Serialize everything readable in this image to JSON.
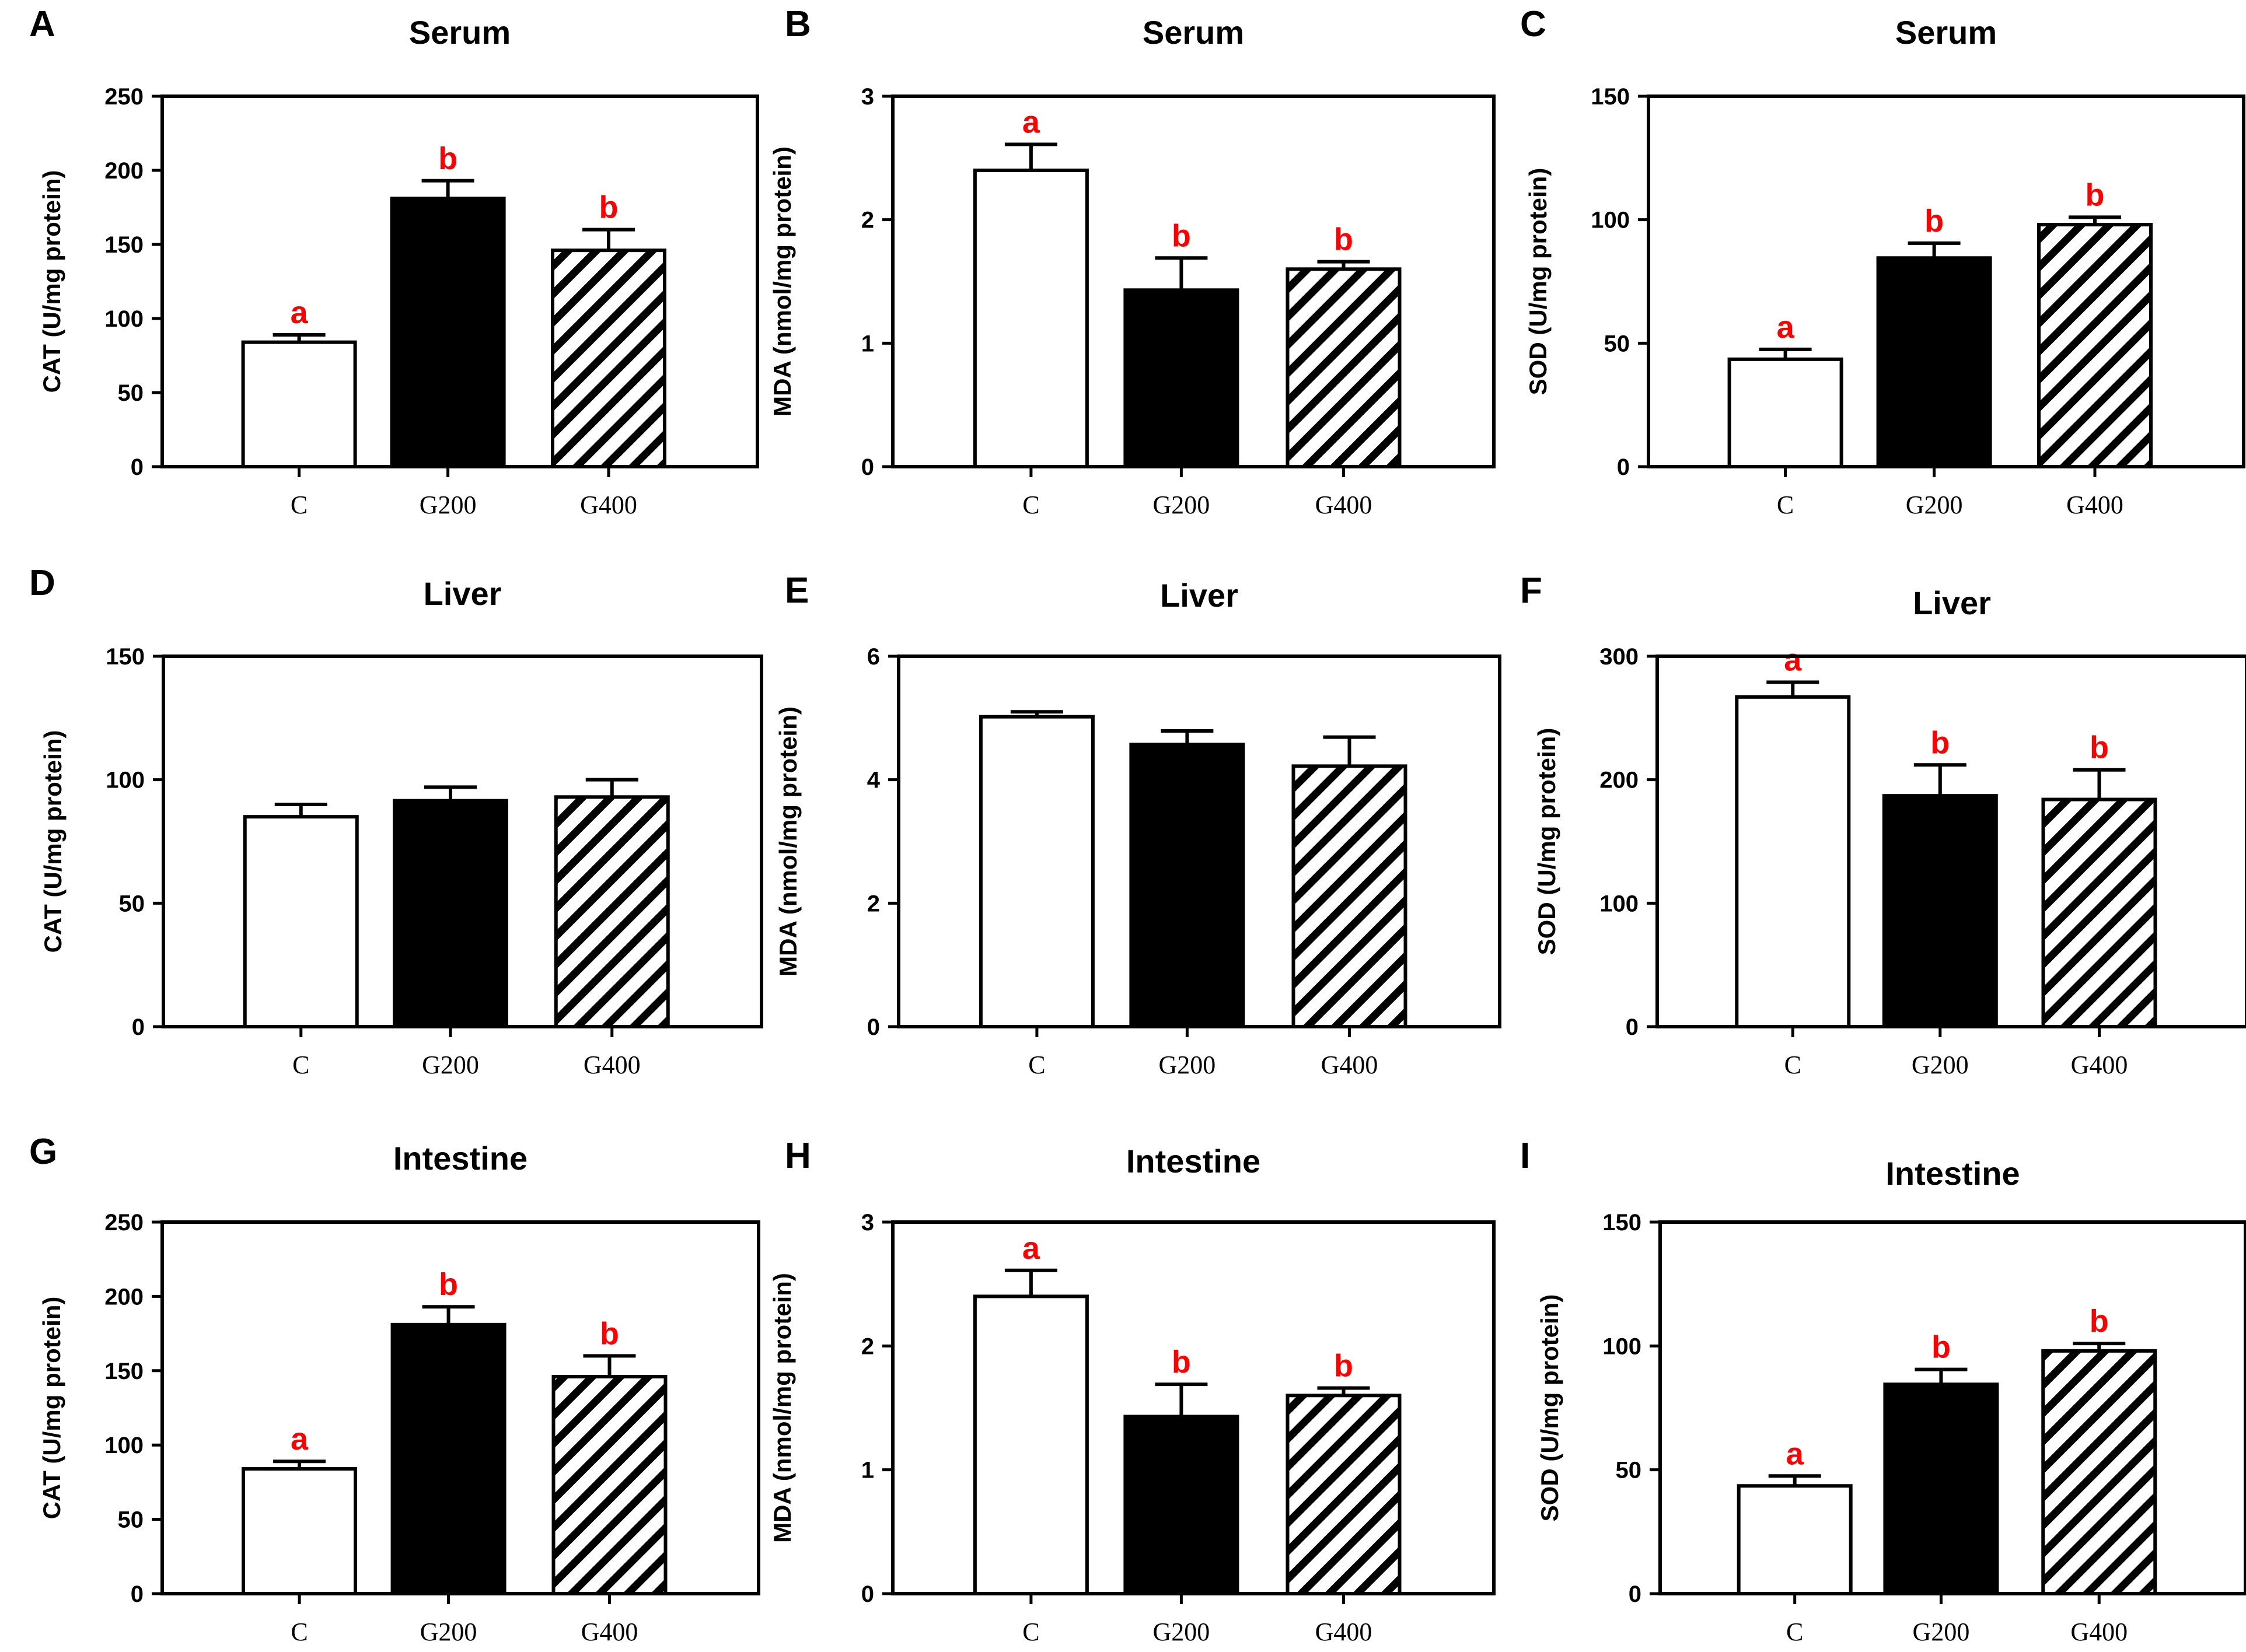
{
  "figure": {
    "group_labels": [
      "C",
      "G200",
      "G400"
    ]
  },
  "colors": {
    "text": "#000000",
    "significance": "#ff0000",
    "bar_c": "#ffffff",
    "bar_g200": "#000000"
  },
  "chart_data": [
    {
      "panel": "A",
      "type": "bar",
      "title": "Serum",
      "ylabel": "CAT (U/mg protein)",
      "categories": [
        "C",
        "G200",
        "G400"
      ],
      "values": [
        84,
        181,
        146
      ],
      "errors": [
        5,
        12,
        14
      ],
      "significance": [
        "a",
        "b",
        "b"
      ],
      "ylim": [
        0,
        250
      ],
      "yticks": [
        "0",
        "50",
        "100",
        "150",
        "200",
        "250"
      ]
    },
    {
      "panel": "B",
      "type": "bar",
      "title": "Serum",
      "ylabel": "MDA (nmol/mg protein)",
      "categories": [
        "C",
        "G200",
        "G400"
      ],
      "values": [
        2.4,
        1.43,
        1.6
      ],
      "errors": [
        0.21,
        0.26,
        0.06
      ],
      "significance": [
        "a",
        "b",
        "b"
      ],
      "ylim": [
        0,
        3
      ],
      "yticks": [
        "0",
        "1",
        "2",
        "3"
      ]
    },
    {
      "panel": "C",
      "type": "bar",
      "title": "Serum",
      "ylabel": "SOD (U/mg protein)",
      "categories": [
        "C",
        "G200",
        "G400"
      ],
      "values": [
        43.5,
        84.5,
        98
      ],
      "errors": [
        4,
        6,
        3
      ],
      "significance": [
        "a",
        "b",
        "b"
      ],
      "ylim": [
        0,
        150
      ],
      "yticks": [
        "0",
        "50",
        "100",
        "150"
      ]
    },
    {
      "panel": "D",
      "type": "bar",
      "title": "Liver",
      "ylabel": "CAT (U/mg protein)",
      "categories": [
        "C",
        "G200",
        "G400"
      ],
      "values": [
        85,
        91.5,
        93
      ],
      "errors": [
        5,
        5.5,
        7
      ],
      "significance": [
        "",
        "",
        ""
      ],
      "ylim": [
        0,
        150
      ],
      "yticks": [
        "0",
        "50",
        "100",
        "150"
      ]
    },
    {
      "panel": "E",
      "type": "bar",
      "title": "Liver",
      "ylabel": "MDA (nmol/mg protein)",
      "categories": [
        "C",
        "G200",
        "G400"
      ],
      "values": [
        5.02,
        4.57,
        4.22
      ],
      "errors": [
        0.08,
        0.22,
        0.47
      ],
      "significance": [
        "",
        "",
        ""
      ],
      "ylim": [
        0,
        6
      ],
      "yticks": [
        "0",
        "2",
        "4",
        "6"
      ]
    },
    {
      "panel": "F",
      "type": "bar",
      "title": "Liver",
      "ylabel": "SOD (U/mg protein)",
      "categories": [
        "C",
        "G200",
        "G400"
      ],
      "values": [
        267,
        187,
        184
      ],
      "errors": [
        12,
        25,
        24
      ],
      "significance": [
        "a",
        "b",
        "b"
      ],
      "ylim": [
        0,
        300
      ],
      "yticks": [
        "0",
        "100",
        "200",
        "300"
      ]
    },
    {
      "panel": "G",
      "type": "bar",
      "title": "Intestine",
      "ylabel": "CAT (U/mg protein)",
      "categories": [
        "C",
        "G200",
        "G400"
      ],
      "values": [
        84,
        181,
        146
      ],
      "errors": [
        5,
        12,
        14
      ],
      "significance": [
        "a",
        "b",
        "b"
      ],
      "ylim": [
        0,
        250
      ],
      "yticks": [
        "0",
        "50",
        "100",
        "150",
        "200",
        "250"
      ]
    },
    {
      "panel": "H",
      "type": "bar",
      "title": "Intestine",
      "ylabel": "MDA (nmol/mg protein)",
      "categories": [
        "C",
        "G200",
        "G400"
      ],
      "values": [
        2.4,
        1.43,
        1.6
      ],
      "errors": [
        0.21,
        0.26,
        0.06
      ],
      "significance": [
        "a",
        "b",
        "b"
      ],
      "ylim": [
        0,
        3
      ],
      "yticks": [
        "0",
        "1",
        "2",
        "3"
      ]
    },
    {
      "panel": "I",
      "type": "bar",
      "title": "Intestine",
      "ylabel": "SOD (U/mg protein)",
      "categories": [
        "C",
        "G200",
        "G400"
      ],
      "values": [
        43.5,
        84.5,
        98
      ],
      "errors": [
        4,
        6,
        3
      ],
      "significance": [
        "a",
        "b",
        "b"
      ],
      "ylim": [
        0,
        150
      ],
      "yticks": [
        "0",
        "50",
        "100",
        "150"
      ]
    }
  ]
}
